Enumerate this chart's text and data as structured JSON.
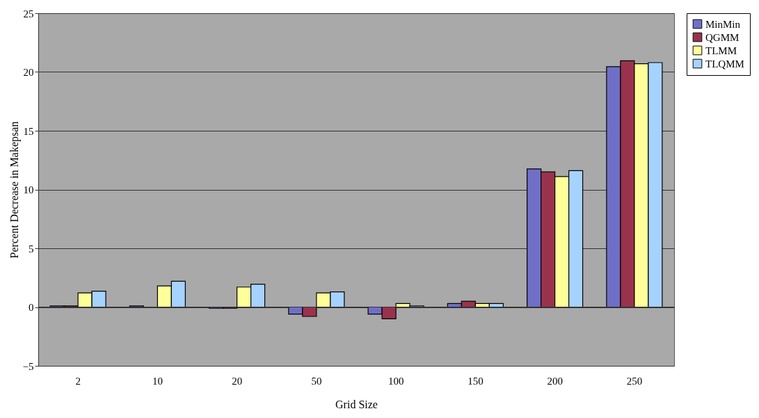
{
  "chart_data": {
    "type": "bar",
    "xlabel": "Grid Size",
    "ylabel": "Percent Decrease in Makepsan",
    "categories": [
      "2",
      "10",
      "20",
      "50",
      "100",
      "150",
      "200",
      "250"
    ],
    "series": [
      {
        "name": "MinMin",
        "color": "#6f6fc8",
        "values": [
          0.1,
          0.1,
          -0.1,
          -0.6,
          -0.6,
          0.3,
          11.75,
          20.45
        ]
      },
      {
        "name": "QGMM",
        "color": "#99334d",
        "values": [
          0.1,
          null,
          -0.1,
          -0.8,
          -1.0,
          0.5,
          11.5,
          20.95
        ]
      },
      {
        "name": "TLMM",
        "color": "#ffff99",
        "values": [
          1.2,
          1.8,
          1.7,
          1.2,
          0.3,
          0.3,
          11.1,
          20.7
        ]
      },
      {
        "name": "TLQMM",
        "color": "#a6d2ff",
        "values": [
          1.35,
          2.2,
          1.95,
          1.3,
          0.1,
          0.3,
          11.6,
          20.8
        ]
      }
    ],
    "ylim": [
      -5,
      25
    ],
    "yticks": [
      -5,
      0,
      5,
      10,
      15,
      20,
      25
    ],
    "grid": "y",
    "legend": "right"
  }
}
